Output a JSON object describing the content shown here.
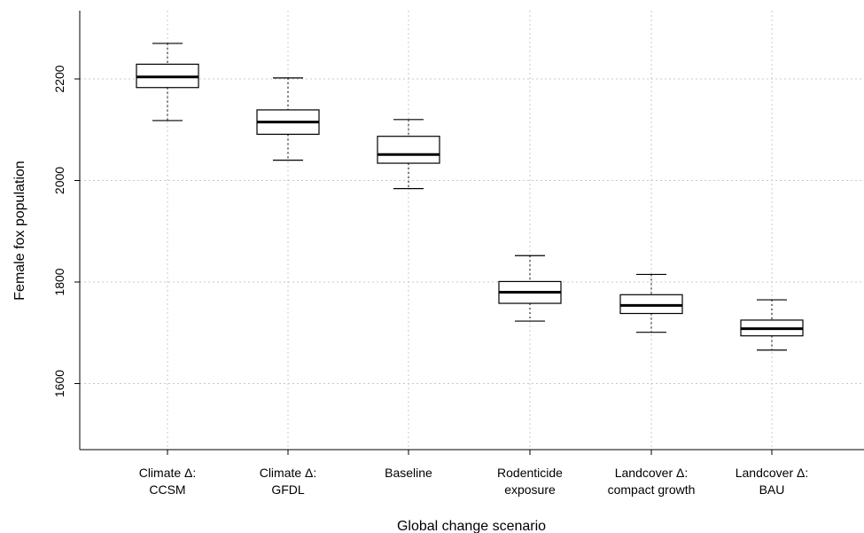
{
  "chart_data": {
    "type": "boxplot",
    "xlabel": "Global change scenario",
    "ylabel": "Female fox population",
    "ylim": [
      1480,
      2330
    ],
    "yticks": [
      1600,
      1800,
      2000,
      2200
    ],
    "grid": true,
    "categories": [
      [
        "Climate Δ:",
        "CCSM"
      ],
      [
        "Climate Δ:",
        "GFDL"
      ],
      [
        "Baseline"
      ],
      [
        "Rodenticide",
        "exposure"
      ],
      [
        "Landcover Δ:",
        "compact growth"
      ],
      [
        "Landcover Δ:",
        "BAU"
      ]
    ],
    "boxes": [
      {
        "whisker_low": 2118,
        "q1": 2183,
        "median": 2204,
        "q3": 2229,
        "whisker_high": 2270
      },
      {
        "whisker_low": 2040,
        "q1": 2091,
        "median": 2115,
        "q3": 2139,
        "whisker_high": 2202
      },
      {
        "whisker_low": 1984,
        "q1": 2034,
        "median": 2051,
        "q3": 2087,
        "whisker_high": 2120
      },
      {
        "whisker_low": 1723,
        "q1": 1758,
        "median": 1780,
        "q3": 1801,
        "whisker_high": 1852
      },
      {
        "whisker_low": 1701,
        "q1": 1738,
        "median": 1754,
        "q3": 1775,
        "whisker_high": 1815
      },
      {
        "whisker_low": 1666,
        "q1": 1694,
        "median": 1708,
        "q3": 1725,
        "whisker_high": 1765
      }
    ]
  }
}
